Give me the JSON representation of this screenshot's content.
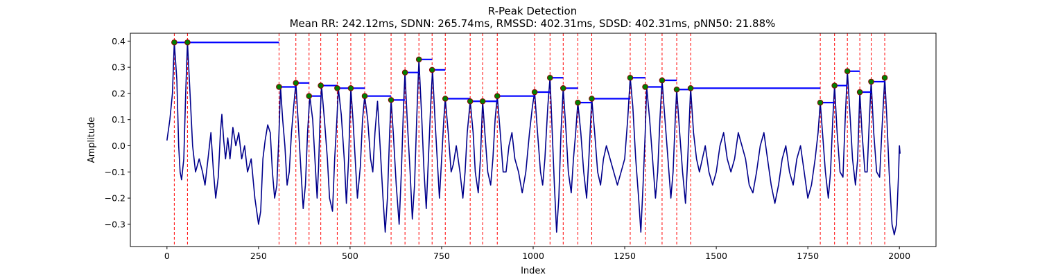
{
  "chart_data": {
    "type": "line",
    "title": "R-Peak Detection",
    "subtitle": "Mean RR: 242.12ms, SDNN: 265.74ms, RMSSD: 402.31ms, SDSD: 402.31ms, pNN50: 21.88%",
    "xlabel": "Index",
    "ylabel": "Amplitude",
    "xlim": [
      -100,
      2100
    ],
    "ylim": [
      -0.385,
      0.43
    ],
    "xticks": [
      0,
      250,
      500,
      750,
      1000,
      1250,
      1500,
      1750,
      2000
    ],
    "yticks": [
      -0.3,
      -0.2,
      -0.1,
      0.0,
      0.1,
      0.2,
      0.3,
      0.4
    ],
    "grid": false,
    "colors": {
      "signal": "#00008b",
      "peak_line": "#ff0000",
      "rr_segment": "#0000ff",
      "peak_marker_fill": "#008000",
      "peak_marker_edge": "#8b0000"
    },
    "signal_points": [
      [
        0,
        0.02
      ],
      [
        8,
        0.1
      ],
      [
        15,
        0.2
      ],
      [
        20,
        0.395
      ],
      [
        27,
        0.25
      ],
      [
        32,
        0.0
      ],
      [
        36,
        -0.1
      ],
      [
        40,
        -0.13
      ],
      [
        46,
        -0.05
      ],
      [
        51,
        0.2
      ],
      [
        56,
        0.395
      ],
      [
        63,
        0.2
      ],
      [
        70,
        0.0
      ],
      [
        78,
        -0.1
      ],
      [
        88,
        -0.05
      ],
      [
        97,
        -0.1
      ],
      [
        104,
        -0.15
      ],
      [
        112,
        -0.05
      ],
      [
        120,
        0.05
      ],
      [
        127,
        -0.1
      ],
      [
        133,
        -0.2
      ],
      [
        140,
        -0.12
      ],
      [
        146,
        0.05
      ],
      [
        150,
        0.12
      ],
      [
        155,
        0.02
      ],
      [
        160,
        -0.05
      ],
      [
        166,
        0.03
      ],
      [
        172,
        -0.05
      ],
      [
        180,
        0.07
      ],
      [
        188,
        0.0
      ],
      [
        196,
        0.05
      ],
      [
        204,
        -0.05
      ],
      [
        212,
        0.0
      ],
      [
        220,
        -0.1
      ],
      [
        230,
        -0.05
      ],
      [
        240,
        -0.2
      ],
      [
        250,
        -0.3
      ],
      [
        256,
        -0.25
      ],
      [
        262,
        -0.05
      ],
      [
        268,
        0.02
      ],
      [
        275,
        0.08
      ],
      [
        282,
        0.05
      ],
      [
        288,
        -0.1
      ],
      [
        294,
        -0.2
      ],
      [
        300,
        -0.15
      ],
      [
        306,
        0.05
      ],
      [
        310,
        0.225
      ],
      [
        316,
        0.1
      ],
      [
        322,
        0.0
      ],
      [
        328,
        -0.15
      ],
      [
        334,
        -0.1
      ],
      [
        340,
        0.05
      ],
      [
        346,
        0.15
      ],
      [
        352,
        0.24
      ],
      [
        358,
        0.1
      ],
      [
        364,
        -0.05
      ],
      [
        372,
        -0.24
      ],
      [
        378,
        -0.15
      ],
      [
        384,
        0.05
      ],
      [
        390,
        0.19
      ],
      [
        398,
        0.1
      ],
      [
        404,
        -0.05
      ],
      [
        410,
        -0.2
      ],
      [
        414,
        -0.08
      ],
      [
        418,
        0.1
      ],
      [
        422,
        0.23
      ],
      [
        430,
        0.1
      ],
      [
        438,
        -0.05
      ],
      [
        444,
        -0.2
      ],
      [
        452,
        -0.25
      ],
      [
        458,
        -0.05
      ],
      [
        464,
        0.1
      ],
      [
        468,
        0.22
      ],
      [
        476,
        0.12
      ],
      [
        484,
        -0.05
      ],
      [
        490,
        -0.22
      ],
      [
        496,
        -0.05
      ],
      [
        502,
        0.22
      ],
      [
        508,
        0.1
      ],
      [
        514,
        -0.05
      ],
      [
        520,
        -0.2
      ],
      [
        528,
        -0.08
      ],
      [
        534,
        0.1
      ],
      [
        540,
        0.19
      ],
      [
        548,
        0.1
      ],
      [
        556,
        -0.05
      ],
      [
        562,
        -0.1
      ],
      [
        568,
        0.05
      ],
      [
        575,
        0.17
      ],
      [
        582,
        0.0
      ],
      [
        590,
        -0.2
      ],
      [
        596,
        -0.33
      ],
      [
        602,
        -0.2
      ],
      [
        608,
        0.05
      ],
      [
        612,
        0.175
      ],
      [
        618,
        0.05
      ],
      [
        626,
        -0.15
      ],
      [
        634,
        -0.3
      ],
      [
        640,
        -0.1
      ],
      [
        646,
        0.15
      ],
      [
        650,
        0.28
      ],
      [
        656,
        0.1
      ],
      [
        664,
        -0.1
      ],
      [
        670,
        -0.28
      ],
      [
        676,
        -0.15
      ],
      [
        682,
        0.1
      ],
      [
        688,
        0.33
      ],
      [
        696,
        0.1
      ],
      [
        702,
        -0.1
      ],
      [
        708,
        -0.24
      ],
      [
        714,
        -0.05
      ],
      [
        720,
        0.15
      ],
      [
        725,
        0.29
      ],
      [
        732,
        0.1
      ],
      [
        738,
        -0.05
      ],
      [
        744,
        -0.2
      ],
      [
        750,
        -0.05
      ],
      [
        756,
        0.1
      ],
      [
        760,
        0.18
      ],
      [
        768,
        0.05
      ],
      [
        776,
        -0.1
      ],
      [
        782,
        -0.07
      ],
      [
        790,
        0.0
      ],
      [
        800,
        -0.1
      ],
      [
        808,
        -0.2
      ],
      [
        814,
        -0.1
      ],
      [
        820,
        0.05
      ],
      [
        828,
        0.17
      ],
      [
        836,
        0.05
      ],
      [
        842,
        -0.1
      ],
      [
        850,
        -0.18
      ],
      [
        856,
        -0.05
      ],
      [
        862,
        0.17
      ],
      [
        868,
        0.05
      ],
      [
        876,
        -0.1
      ],
      [
        884,
        -0.15
      ],
      [
        890,
        -0.05
      ],
      [
        896,
        0.1
      ],
      [
        902,
        0.19
      ],
      [
        910,
        0.05
      ],
      [
        918,
        -0.1
      ],
      [
        926,
        -0.1
      ],
      [
        934,
        0.0
      ],
      [
        942,
        0.05
      ],
      [
        950,
        -0.05
      ],
      [
        960,
        -0.1
      ],
      [
        970,
        -0.18
      ],
      [
        980,
        -0.1
      ],
      [
        990,
        0.05
      ],
      [
        998,
        0.15
      ],
      [
        1004,
        0.205
      ],
      [
        1012,
        0.05
      ],
      [
        1020,
        -0.1
      ],
      [
        1026,
        -0.15
      ],
      [
        1032,
        -0.05
      ],
      [
        1040,
        0.15
      ],
      [
        1046,
        0.26
      ],
      [
        1052,
        0.05
      ],
      [
        1058,
        -0.15
      ],
      [
        1064,
        -0.33
      ],
      [
        1070,
        -0.2
      ],
      [
        1076,
        0.05
      ],
      [
        1082,
        0.22
      ],
      [
        1090,
        0.05
      ],
      [
        1096,
        -0.1
      ],
      [
        1104,
        -0.18
      ],
      [
        1110,
        -0.05
      ],
      [
        1116,
        0.05
      ],
      [
        1122,
        0.165
      ],
      [
        1130,
        0.05
      ],
      [
        1138,
        -0.1
      ],
      [
        1146,
        -0.2
      ],
      [
        1152,
        -0.05
      ],
      [
        1160,
        0.18
      ],
      [
        1168,
        0.05
      ],
      [
        1176,
        -0.1
      ],
      [
        1184,
        -0.15
      ],
      [
        1192,
        -0.05
      ],
      [
        1200,
        0.0
      ],
      [
        1210,
        -0.05
      ],
      [
        1220,
        -0.1
      ],
      [
        1230,
        -0.15
      ],
      [
        1240,
        -0.1
      ],
      [
        1250,
        -0.05
      ],
      [
        1258,
        0.1
      ],
      [
        1265,
        0.26
      ],
      [
        1272,
        0.15
      ],
      [
        1280,
        -0.05
      ],
      [
        1288,
        -0.2
      ],
      [
        1294,
        -0.33
      ],
      [
        1300,
        -0.15
      ],
      [
        1306,
        0.05
      ],
      [
        1310,
        0.225
      ],
      [
        1318,
        0.1
      ],
      [
        1326,
        -0.05
      ],
      [
        1334,
        -0.2
      ],
      [
        1340,
        -0.1
      ],
      [
        1346,
        0.1
      ],
      [
        1352,
        0.25
      ],
      [
        1360,
        0.1
      ],
      [
        1368,
        -0.05
      ],
      [
        1376,
        -0.2
      ],
      [
        1382,
        -0.1
      ],
      [
        1388,
        0.1
      ],
      [
        1392,
        0.215
      ],
      [
        1400,
        0.05
      ],
      [
        1408,
        -0.1
      ],
      [
        1416,
        -0.22
      ],
      [
        1422,
        -0.05
      ],
      [
        1430,
        0.22
      ],
      [
        1438,
        0.05
      ],
      [
        1446,
        -0.05
      ],
      [
        1454,
        -0.1
      ],
      [
        1462,
        -0.05
      ],
      [
        1470,
        0.0
      ],
      [
        1480,
        -0.1
      ],
      [
        1490,
        -0.15
      ],
      [
        1500,
        -0.1
      ],
      [
        1510,
        0.0
      ],
      [
        1520,
        0.05
      ],
      [
        1530,
        -0.05
      ],
      [
        1540,
        -0.1
      ],
      [
        1550,
        -0.05
      ],
      [
        1560,
        0.05
      ],
      [
        1570,
        0.0
      ],
      [
        1580,
        -0.05
      ],
      [
        1590,
        -0.15
      ],
      [
        1600,
        -0.18
      ],
      [
        1610,
        -0.1
      ],
      [
        1620,
        0.0
      ],
      [
        1630,
        0.05
      ],
      [
        1640,
        -0.05
      ],
      [
        1650,
        -0.15
      ],
      [
        1660,
        -0.22
      ],
      [
        1670,
        -0.15
      ],
      [
        1680,
        -0.05
      ],
      [
        1690,
        0.0
      ],
      [
        1700,
        -0.1
      ],
      [
        1710,
        -0.15
      ],
      [
        1720,
        -0.05
      ],
      [
        1730,
        0.0
      ],
      [
        1740,
        -0.1
      ],
      [
        1750,
        -0.2
      ],
      [
        1760,
        -0.15
      ],
      [
        1770,
        -0.05
      ],
      [
        1778,
        0.05
      ],
      [
        1784,
        0.165
      ],
      [
        1790,
        0.05
      ],
      [
        1798,
        -0.1
      ],
      [
        1806,
        -0.2
      ],
      [
        1812,
        -0.1
      ],
      [
        1818,
        0.1
      ],
      [
        1823,
        0.23
      ],
      [
        1830,
        0.05
      ],
      [
        1838,
        -0.1
      ],
      [
        1846,
        -0.12
      ],
      [
        1852,
        0.1
      ],
      [
        1858,
        0.285
      ],
      [
        1866,
        0.1
      ],
      [
        1872,
        -0.05
      ],
      [
        1880,
        -0.15
      ],
      [
        1886,
        -0.05
      ],
      [
        1892,
        0.205
      ],
      [
        1898,
        0.05
      ],
      [
        1906,
        -0.1
      ],
      [
        1912,
        -0.1
      ],
      [
        1918,
        0.1
      ],
      [
        1923,
        0.245
      ],
      [
        1930,
        0.05
      ],
      [
        1938,
        -0.1
      ],
      [
        1946,
        -0.12
      ],
      [
        1952,
        0.05
      ],
      [
        1960,
        0.26
      ],
      [
        1966,
        0.1
      ],
      [
        1972,
        -0.1
      ],
      [
        1980,
        -0.3
      ],
      [
        1986,
        -0.34
      ],
      [
        1992,
        -0.3
      ],
      [
        1998,
        -0.1
      ],
      [
        2000,
        0.0
      ],
      [
        2002,
        -0.03
      ]
    ],
    "peaks": [
      [
        20,
        0.395
      ],
      [
        56,
        0.395
      ],
      [
        306,
        0.225
      ],
      [
        352,
        0.24
      ],
      [
        388,
        0.19
      ],
      [
        420,
        0.23
      ],
      [
        465,
        0.22
      ],
      [
        502,
        0.22
      ],
      [
        540,
        0.19
      ],
      [
        612,
        0.175
      ],
      [
        650,
        0.28
      ],
      [
        688,
        0.33
      ],
      [
        724,
        0.29
      ],
      [
        760,
        0.18
      ],
      [
        828,
        0.17
      ],
      [
        862,
        0.17
      ],
      [
        902,
        0.19
      ],
      [
        1004,
        0.205
      ],
      [
        1046,
        0.26
      ],
      [
        1082,
        0.22
      ],
      [
        1122,
        0.165
      ],
      [
        1160,
        0.18
      ],
      [
        1265,
        0.26
      ],
      [
        1306,
        0.225
      ],
      [
        1352,
        0.25
      ],
      [
        1392,
        0.215
      ],
      [
        1430,
        0.22
      ],
      [
        1784,
        0.165
      ],
      [
        1823,
        0.23
      ],
      [
        1858,
        0.285
      ],
      [
        1892,
        0.205
      ],
      [
        1923,
        0.245
      ],
      [
        1960,
        0.26
      ]
    ]
  }
}
